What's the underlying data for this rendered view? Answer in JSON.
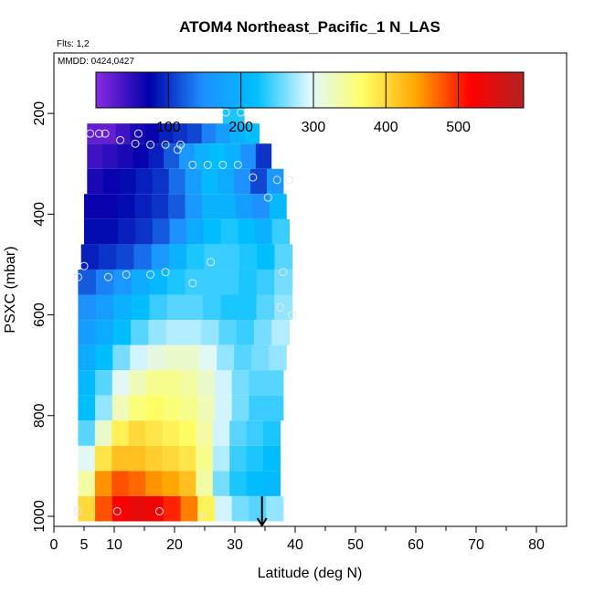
{
  "colors": {
    "palette": [
      "#8a2be2",
      "#0000aa",
      "#1e90ff",
      "#00bfff",
      "#e0f8ff",
      "#ffff66",
      "#ffa500",
      "#ff0000",
      "#b22222"
    ],
    "marker": "#e6e6e6",
    "arrow": "#000000"
  },
  "chart_data": {
    "type": "heatmap",
    "title": "ATOM4 Northeast_Pacific_1 N_LAS",
    "subtitle_flts": "Flts: 1,2",
    "subtitle_mmdd": "MMDD: 0424,0427",
    "xlabel": "Latitude (deg N)",
    "ylabel": "PSXC (mbar)",
    "xlim": [
      0,
      85
    ],
    "ylim": [
      1020,
      80
    ],
    "y_inverted": true,
    "xticks": [
      0,
      5,
      10,
      20,
      30,
      40,
      50,
      60,
      70,
      80
    ],
    "yticks": [
      200,
      400,
      600,
      800,
      1000
    ],
    "colorbar": {
      "range": [
        0,
        590
      ],
      "ticks": [
        100,
        200,
        300,
        400,
        500
      ]
    },
    "bands": [
      {
        "p_bottom": 220,
        "p_top": 180,
        "xmin": 28,
        "xmax": 31.5,
        "values": [
          230
        ]
      },
      {
        "p_bottom": 260,
        "p_top": 220,
        "xmin": 5.5,
        "xmax": 34,
        "values": [
          20,
          20,
          40,
          60,
          70,
          90,
          100,
          110,
          140,
          170,
          200,
          220
        ]
      },
      {
        "p_bottom": 310,
        "p_top": 260,
        "xmin": 5.5,
        "xmax": 36,
        "values": [
          40,
          50,
          60,
          70,
          90,
          120,
          160,
          200,
          220,
          200,
          150,
          100
        ]
      },
      {
        "p_bottom": 360,
        "p_top": 310,
        "xmin": 5.5,
        "xmax": 38,
        "values": [
          60,
          70,
          80,
          90,
          100,
          130,
          170,
          210,
          190,
          150,
          110,
          160
        ]
      },
      {
        "p_bottom": 410,
        "p_top": 360,
        "xmin": 5,
        "xmax": 38.5,
        "values": [
          70,
          70,
          80,
          90,
          100,
          120,
          160,
          200,
          200,
          170,
          150,
          210
        ]
      },
      {
        "p_bottom": 460,
        "p_top": 410,
        "xmin": 5,
        "xmax": 39,
        "values": [
          80,
          80,
          90,
          100,
          120,
          150,
          190,
          220,
          230,
          220,
          200,
          240
        ]
      },
      {
        "p_bottom": 510,
        "p_top": 460,
        "xmin": 4.5,
        "xmax": 39.5,
        "values": [
          90,
          100,
          110,
          130,
          160,
          200,
          230,
          240,
          240,
          230,
          220,
          250
        ]
      },
      {
        "p_bottom": 560,
        "p_top": 510,
        "xmin": 4,
        "xmax": 39.5,
        "values": [
          120,
          140,
          160,
          190,
          210,
          230,
          240,
          240,
          240,
          230,
          240,
          260
        ]
      },
      {
        "p_bottom": 610,
        "p_top": 560,
        "xmin": 4,
        "xmax": 39.5,
        "values": [
          150,
          170,
          200,
          220,
          240,
          250,
          250,
          240,
          230,
          230,
          250,
          270
        ]
      },
      {
        "p_bottom": 660,
        "p_top": 610,
        "xmin": 4,
        "xmax": 39,
        "values": [
          170,
          190,
          220,
          250,
          270,
          280,
          280,
          270,
          250,
          240,
          260,
          280
        ]
      },
      {
        "p_bottom": 710,
        "p_top": 660,
        "xmin": 4,
        "xmax": 38.5,
        "values": [
          190,
          220,
          260,
          290,
          310,
          320,
          320,
          300,
          270,
          250,
          260,
          270
        ]
      },
      {
        "p_bottom": 760,
        "p_top": 710,
        "xmin": 4,
        "xmax": 38,
        "values": [
          210,
          250,
          300,
          330,
          350,
          350,
          340,
          320,
          290,
          260,
          250,
          250
        ]
      },
      {
        "p_bottom": 810,
        "p_top": 760,
        "xmin": 4,
        "xmax": 38,
        "values": [
          220,
          270,
          330,
          360,
          370,
          360,
          350,
          330,
          290,
          260,
          240,
          240
        ]
      },
      {
        "p_bottom": 860,
        "p_top": 810,
        "xmin": 4,
        "xmax": 37.5,
        "values": [
          250,
          320,
          380,
          400,
          390,
          380,
          370,
          340,
          290,
          250,
          240,
          230
        ]
      },
      {
        "p_bottom": 910,
        "p_top": 860,
        "xmin": 4,
        "xmax": 37.5,
        "values": [
          300,
          390,
          420,
          420,
          410,
          400,
          390,
          350,
          280,
          240,
          230,
          220
        ]
      },
      {
        "p_bottom": 960,
        "p_top": 910,
        "xmin": 4,
        "xmax": 37.5,
        "values": [
          340,
          450,
          480,
          470,
          450,
          440,
          420,
          340,
          260,
          230,
          220,
          210
        ]
      },
      {
        "p_bottom": 1010,
        "p_top": 960,
        "xmin": 4,
        "xmax": 38,
        "values": [
          400,
          480,
          520,
          540,
          530,
          500,
          460,
          380,
          290,
          260,
          250,
          270
        ]
      }
    ],
    "points": [
      {
        "x": 28.5,
        "y": 198
      },
      {
        "x": 31,
        "y": 198
      },
      {
        "x": 6,
        "y": 240
      },
      {
        "x": 7.5,
        "y": 240
      },
      {
        "x": 8.5,
        "y": 240
      },
      {
        "x": 14,
        "y": 240
      },
      {
        "x": 11,
        "y": 253
      },
      {
        "x": 13.5,
        "y": 260
      },
      {
        "x": 16,
        "y": 262
      },
      {
        "x": 18.5,
        "y": 262
      },
      {
        "x": 21,
        "y": 262
      },
      {
        "x": 20.5,
        "y": 272
      },
      {
        "x": 23,
        "y": 302
      },
      {
        "x": 25.5,
        "y": 302
      },
      {
        "x": 28,
        "y": 302
      },
      {
        "x": 30.5,
        "y": 302
      },
      {
        "x": 33,
        "y": 327
      },
      {
        "x": 37,
        "y": 332
      },
      {
        "x": 39,
        "y": 332
      },
      {
        "x": 35.5,
        "y": 367
      },
      {
        "x": 5,
        "y": 503
      },
      {
        "x": 26,
        "y": 495
      },
      {
        "x": 4,
        "y": 525
      },
      {
        "x": 9,
        "y": 525
      },
      {
        "x": 12,
        "y": 520
      },
      {
        "x": 18.5,
        "y": 515
      },
      {
        "x": 16,
        "y": 520
      },
      {
        "x": 38,
        "y": 515
      },
      {
        "x": 23,
        "y": 537
      },
      {
        "x": 37.5,
        "y": 585
      },
      {
        "x": 39.5,
        "y": 600
      },
      {
        "x": 10.5,
        "y": 990
      },
      {
        "x": 17.5,
        "y": 990
      },
      {
        "x": 24.5,
        "y": 998
      },
      {
        "x": 4,
        "y": 990
      }
    ],
    "arrow": {
      "x": 34.5,
      "y_from": 960,
      "y_to": 1020
    }
  }
}
